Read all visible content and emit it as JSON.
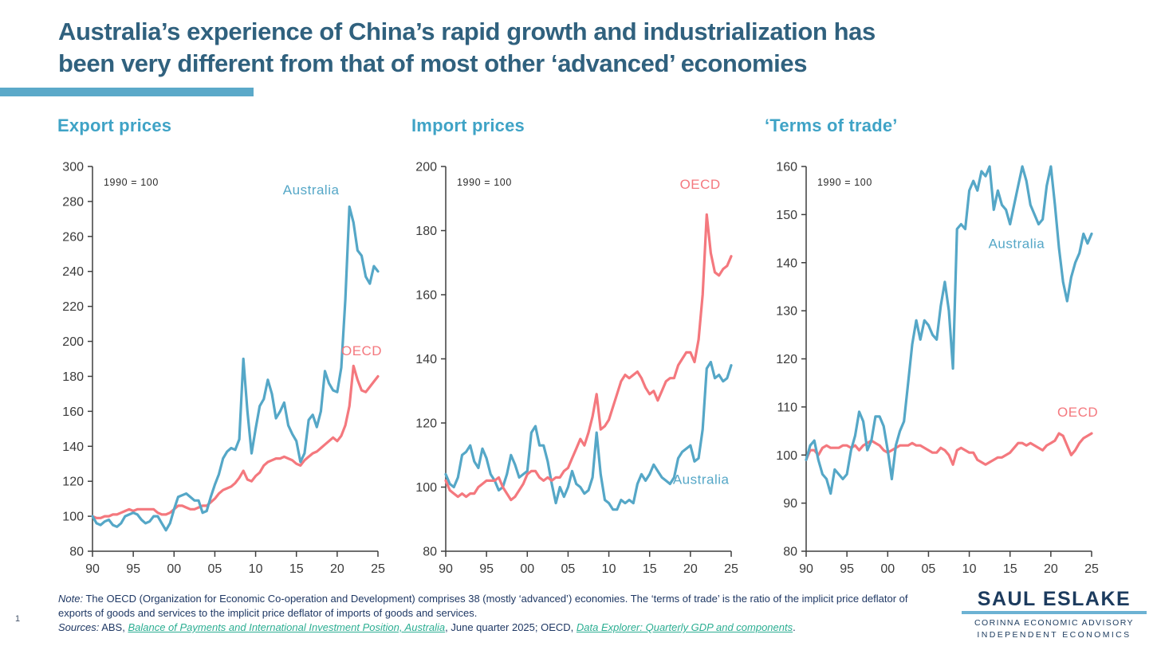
{
  "header": {
    "title_line1": "Australia’s experience of China’s rapid growth and industrialization has",
    "title_line2": "been very different from that of most other ‘advanced’ economies"
  },
  "page_number": "1",
  "colors": {
    "australia": "#55A7C7",
    "oecd": "#F4787E",
    "chart_heading": "#3FA3C6",
    "title_text": "#30617E",
    "accent_bar": "#5BA9C9",
    "footer_text": "#1F3864",
    "link": "#2BAE92",
    "axis": "#3F3F3F",
    "tick_label": "#3A3A3A",
    "logo_navy": "#1C3B5E",
    "logo_rule": "#6CB2D3"
  },
  "chart_data": [
    {
      "type": "line",
      "title": "Export prices",
      "annotation": "1990 = 100",
      "xlim": [
        1990,
        2025
      ],
      "ylim": [
        80,
        300
      ],
      "y_tick_step": 20,
      "x_ticks": [
        {
          "v": 1990,
          "t": "90"
        },
        {
          "v": 1995,
          "t": "95"
        },
        {
          "v": 2000,
          "t": "00"
        },
        {
          "v": 2005,
          "t": "05"
        },
        {
          "v": 2010,
          "t": "10"
        },
        {
          "v": 2015,
          "t": "15"
        },
        {
          "v": 2020,
          "t": "20"
        },
        {
          "v": 2025,
          "t": "25"
        }
      ],
      "x_start": 1990,
      "x_step": 0.5,
      "legend_position": "inline-labels",
      "grid": false,
      "series": [
        {
          "name": "OECD",
          "color": "oecd",
          "label_pos": {
            "x": 2023.0,
            "y": 192
          },
          "values": [
            100,
            99,
            99,
            100,
            100,
            101,
            101,
            102,
            103,
            104,
            103,
            104,
            104,
            104,
            104,
            104,
            102,
            101,
            101,
            102,
            104,
            106,
            106,
            105,
            104,
            104,
            105,
            106,
            106,
            108,
            110,
            113,
            115,
            116,
            117,
            119,
            122,
            126,
            121,
            120,
            123,
            125,
            129,
            131,
            132,
            133,
            133,
            134,
            133,
            132,
            130,
            129,
            132,
            134,
            136,
            137,
            139,
            141,
            143,
            145,
            143,
            146,
            152,
            163,
            186,
            178,
            172,
            171,
            174,
            177,
            180
          ]
        },
        {
          "name": "Australia",
          "color": "australia",
          "label_pos": {
            "x": 2016.8,
            "y": 284
          },
          "values": [
            100,
            96,
            95,
            97,
            98,
            95,
            94,
            96,
            100,
            101,
            102,
            101,
            98,
            96,
            97,
            100,
            100,
            96,
            92,
            96,
            104,
            111,
            112,
            113,
            111,
            109,
            109,
            102,
            103,
            111,
            118,
            124,
            133,
            137,
            139,
            138,
            144,
            190,
            160,
            136,
            150,
            163,
            167,
            178,
            170,
            156,
            160,
            165,
            152,
            147,
            143,
            131,
            136,
            155,
            158,
            151,
            160,
            183,
            176,
            172,
            171,
            185,
            224,
            277,
            268,
            252,
            249,
            237,
            233,
            243,
            240
          ]
        }
      ]
    },
    {
      "type": "line",
      "title": "Import prices",
      "annotation": "1990 = 100",
      "xlim": [
        1990,
        2025
      ],
      "ylim": [
        80,
        200
      ],
      "y_tick_step": 20,
      "x_ticks": [
        {
          "v": 1990,
          "t": "90"
        },
        {
          "v": 1995,
          "t": "95"
        },
        {
          "v": 2000,
          "t": "00"
        },
        {
          "v": 2005,
          "t": "05"
        },
        {
          "v": 2010,
          "t": "10"
        },
        {
          "v": 2015,
          "t": "15"
        },
        {
          "v": 2020,
          "t": "20"
        },
        {
          "v": 2025,
          "t": "25"
        }
      ],
      "x_start": 1990,
      "x_step": 0.5,
      "legend_position": "inline-labels",
      "grid": false,
      "series": [
        {
          "name": "Australia",
          "color": "australia",
          "label_pos": {
            "x": 2021.3,
            "y": 101
          },
          "values": [
            104,
            101,
            100,
            103,
            110,
            111,
            113,
            108,
            106,
            112,
            109,
            104,
            102,
            99,
            100,
            104,
            110,
            107,
            103,
            104,
            105,
            117,
            119,
            113,
            113,
            108,
            101,
            95,
            100,
            97,
            100,
            105,
            101,
            100,
            98,
            99,
            103,
            117,
            104,
            96,
            95,
            93,
            93,
            96,
            95,
            96,
            95,
            101,
            104,
            102,
            104,
            107,
            105,
            103,
            102,
            101,
            103,
            109,
            111,
            112,
            113,
            108,
            109,
            118,
            137,
            139,
            134,
            135,
            133,
            134,
            138
          ]
        },
        {
          "name": "OECD",
          "color": "oecd",
          "label_pos": {
            "x": 2021.2,
            "y": 193
          },
          "values": [
            102,
            99,
            98,
            97,
            98,
            97,
            98,
            98,
            100,
            101,
            102,
            102,
            102,
            103,
            100,
            98,
            96,
            97,
            99,
            101,
            104,
            105,
            105,
            103,
            102,
            103,
            102,
            103,
            103,
            105,
            106,
            109,
            112,
            115,
            113,
            117,
            122,
            129,
            118,
            119,
            121,
            125,
            129,
            133,
            135,
            134,
            135,
            136,
            134,
            131,
            129,
            130,
            127,
            130,
            133,
            134,
            134,
            138,
            140,
            142,
            142,
            139,
            146,
            160,
            185,
            173,
            167,
            166,
            168,
            169,
            172
          ]
        }
      ]
    },
    {
      "type": "line",
      "title": "‘Terms of trade’",
      "annotation": "1990 = 100",
      "xlim": [
        1990,
        2025
      ],
      "ylim": [
        80,
        160
      ],
      "y_tick_step": 10,
      "x_ticks": [
        {
          "v": 1990,
          "t": "90"
        },
        {
          "v": 1995,
          "t": "95"
        },
        {
          "v": 2000,
          "t": "00"
        },
        {
          "v": 2005,
          "t": "05"
        },
        {
          "v": 2010,
          "t": "10"
        },
        {
          "v": 2015,
          "t": "15"
        },
        {
          "v": 2020,
          "t": "20"
        },
        {
          "v": 2025,
          "t": "25"
        }
      ],
      "x_start": 1990,
      "x_step": 0.5,
      "legend_position": "inline-labels",
      "grid": false,
      "series": [
        {
          "name": "OECD",
          "color": "oecd",
          "label_pos": {
            "x": 2023.3,
            "y": 108
          },
          "values": [
            99,
            101,
            101,
            100,
            101.5,
            102,
            101.5,
            101.5,
            101.5,
            102,
            102,
            101.5,
            102,
            101,
            102,
            102.5,
            103,
            102.5,
            102,
            101,
            100.5,
            101,
            101.5,
            102,
            102,
            102,
            102.5,
            102,
            102,
            101.5,
            101,
            100.5,
            100.5,
            101.5,
            101,
            100,
            98,
            101,
            101.5,
            101,
            100.5,
            100.5,
            99,
            98.5,
            98,
            98.5,
            99,
            99.5,
            99.5,
            100,
            100.5,
            101.5,
            102.5,
            102.5,
            102,
            102.5,
            102,
            101.5,
            101,
            102,
            102.5,
            103,
            104.5,
            104,
            102,
            100,
            101,
            102.5,
            103.5,
            104,
            104.5
          ]
        },
        {
          "name": "Australia",
          "color": "australia",
          "label_pos": {
            "x": 2015.8,
            "y": 143
          },
          "values": [
            99,
            102,
            103,
            99,
            96,
            95,
            92,
            97,
            96,
            95,
            96,
            101,
            104,
            109,
            107,
            101,
            103,
            108,
            108,
            106,
            101,
            95,
            102,
            105,
            107,
            115,
            123,
            128,
            124,
            128,
            127,
            125,
            124,
            131,
            136,
            130,
            118,
            147,
            148,
            147,
            155,
            157,
            155,
            159,
            158,
            160,
            151,
            155,
            152,
            151,
            148,
            152,
            156,
            160,
            157,
            152,
            150,
            148,
            149,
            156,
            160,
            152,
            143,
            136,
            132,
            137,
            140,
            142,
            146,
            144,
            146
          ]
        }
      ]
    }
  ],
  "footer": {
    "note_label": "Note:",
    "note_text": " The OECD (Organization for Economic Co-operation and Development) comprises 38 (mostly ‘advanced’) economies.  The ‘terms of trade’ is the ratio of the implicit price deflator of exports of goods and services to the implicit price deflator of imports of goods and services.",
    "sources_label": "Sources:",
    "sources_pre": " ABS, ",
    "link1": "Balance of Payments and International Investment Position, Australia",
    "sources_mid": ", June quarter 2025; OECD, ",
    "link2": "Data Explorer: Quarterly GDP and components",
    "sources_end": "."
  },
  "logo": {
    "name": "SAUL ESLAKE",
    "sub1": "CORINNA ECONOMIC ADVISORY",
    "sub2": "INDEPENDENT ECONOMICS"
  }
}
